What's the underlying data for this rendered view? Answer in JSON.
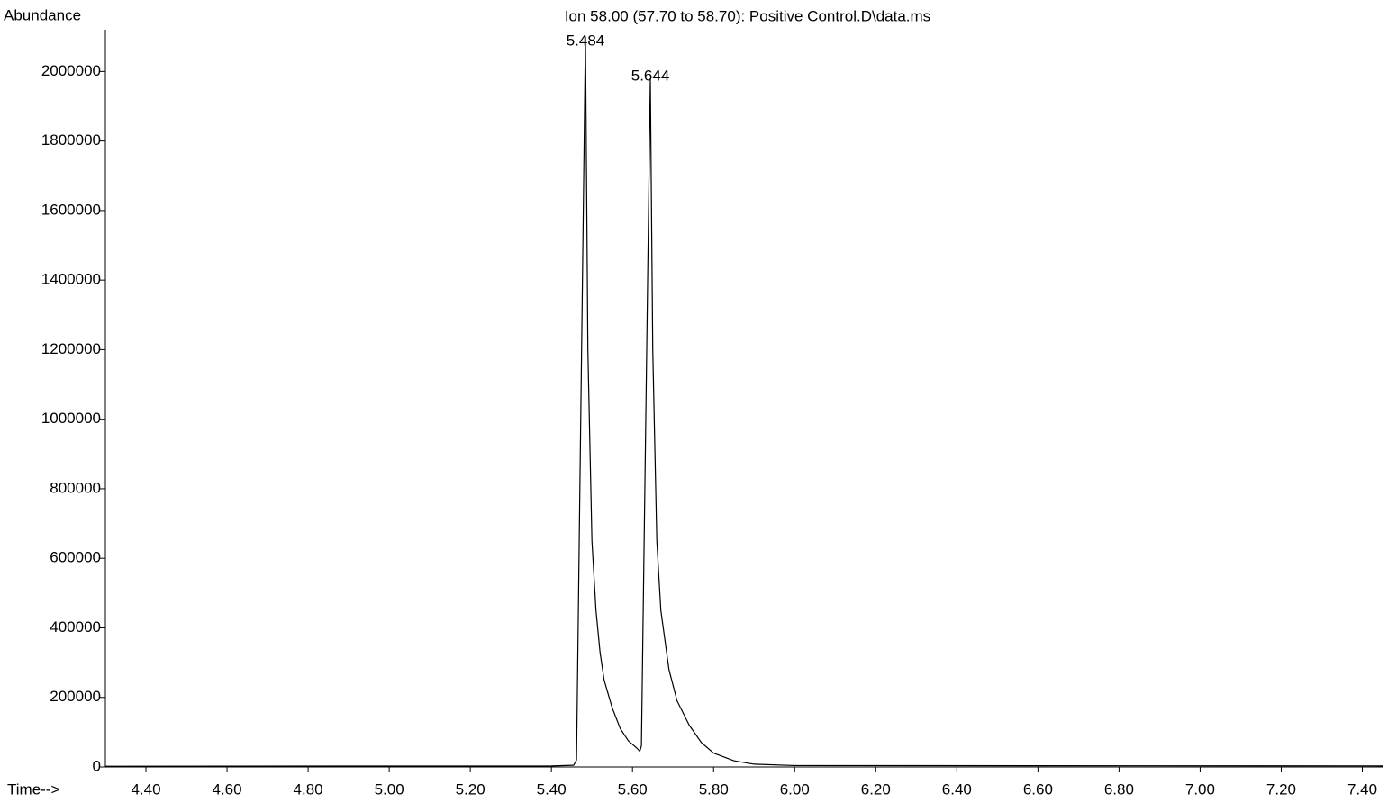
{
  "chart_data": {
    "type": "line",
    "title": "Ion  58.00 (57.70 to 58.70): Positive Control.D\\data.ms",
    "y_label": "Abundance",
    "x_label": "Time-->",
    "x": [
      4.3,
      5.4,
      5.455,
      5.462,
      5.484,
      5.49,
      5.5,
      5.51,
      5.52,
      5.53,
      5.55,
      5.57,
      5.59,
      5.61,
      5.618,
      5.622,
      5.644,
      5.65,
      5.66,
      5.67,
      5.69,
      5.71,
      5.74,
      5.77,
      5.8,
      5.85,
      5.9,
      6.0,
      7.45
    ],
    "values": [
      2000,
      3000,
      5000,
      20000,
      2100000,
      1200000,
      650000,
      450000,
      330000,
      250000,
      170000,
      110000,
      75000,
      55000,
      45000,
      60000,
      1980000,
      1200000,
      650000,
      450000,
      280000,
      190000,
      120000,
      70000,
      40000,
      18000,
      8000,
      4000,
      3000
    ],
    "color": "#000000",
    "peak_labels": [
      5.484,
      5.644
    ],
    "peak_heights": [
      2100000,
      1980000
    ],
    "xlim": [
      4.3,
      7.45
    ],
    "ylim": [
      0,
      2120000
    ],
    "xticks": [
      {
        "value": 4.4,
        "label": "4.40"
      },
      {
        "value": 4.6,
        "label": "4.60"
      },
      {
        "value": 4.8,
        "label": "4.80"
      },
      {
        "value": 5.0,
        "label": "5.00"
      },
      {
        "value": 5.2,
        "label": "5.20"
      },
      {
        "value": 5.4,
        "label": "5.40"
      },
      {
        "value": 5.6,
        "label": "5.60"
      },
      {
        "value": 5.8,
        "label": "5.80"
      },
      {
        "value": 6.0,
        "label": "6.00"
      },
      {
        "value": 6.2,
        "label": "6.20"
      },
      {
        "value": 6.4,
        "label": "6.40"
      },
      {
        "value": 6.6,
        "label": "6.60"
      },
      {
        "value": 6.8,
        "label": "6.80"
      },
      {
        "value": 7.0,
        "label": "7.00"
      },
      {
        "value": 7.2,
        "label": "7.20"
      },
      {
        "value": 7.4,
        "label": "7.40"
      }
    ],
    "yticks": [
      0,
      200000,
      400000,
      600000,
      800000,
      1000000,
      1200000,
      1400000,
      1600000,
      1800000,
      2000000
    ]
  }
}
